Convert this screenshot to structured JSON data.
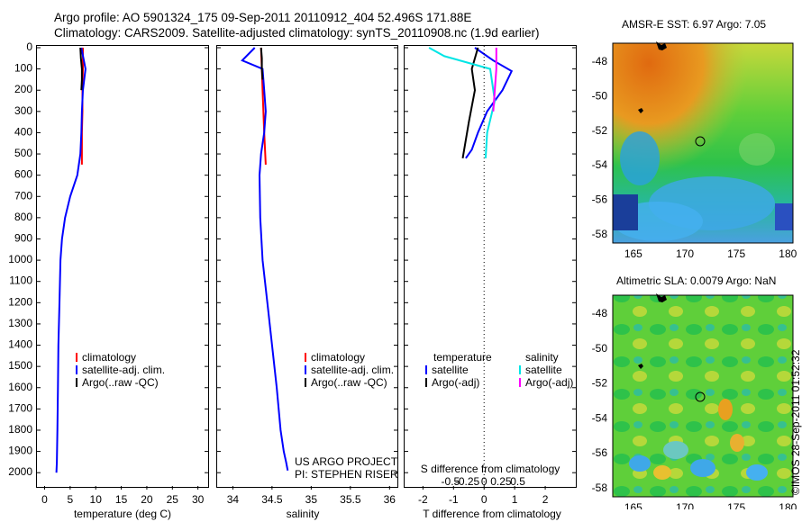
{
  "header": {
    "line1": "Argo profile: AO 5901324_175 09-Sep-2011 20110912_404 52.496S 171.88E",
    "line2": "Climatology: CARS2009. Satellite-adjusted climatology: synTS_20110908.nc (1.9d earlier)"
  },
  "colors": {
    "climatology": "#ff0000",
    "satellite": "#0000ff",
    "argo": "#000000",
    "sal_satellite": "#00e5e5",
    "sal_argo": "#ff00ff"
  },
  "depth_axis": {
    "min": 0,
    "max": 2050,
    "ticks": [
      "0",
      "100",
      "200",
      "300",
      "400",
      "500",
      "600",
      "700",
      "800",
      "900",
      "1000",
      "1100",
      "1200",
      "1300",
      "1400",
      "1500",
      "1600",
      "1700",
      "1800",
      "1900",
      "2000"
    ]
  },
  "chart_data": [
    {
      "type": "line",
      "id": "temperature",
      "xlabel": "temperature (deg C)",
      "xlim": [
        -1.5,
        32
      ],
      "xticks": [
        "0",
        "5",
        "10",
        "15",
        "20",
        "25",
        "30"
      ],
      "series": [
        {
          "name": "climatology",
          "x": [
            7.5,
            7.5,
            7.4,
            7.4,
            7.3,
            7.3
          ],
          "y": [
            0,
            100,
            200,
            300,
            400,
            550
          ]
        },
        {
          "name": "satellite-adj. clim.",
          "x": [
            7.2,
            8.0,
            7.5,
            7.3,
            7.2,
            7.0,
            6.4,
            5.0,
            4.0,
            3.4,
            3.1,
            2.9,
            2.7,
            2.6,
            2.5,
            2.4,
            2.3
          ],
          "y": [
            0,
            100,
            200,
            300,
            400,
            500,
            600,
            700,
            800,
            900,
            1000,
            1200,
            1400,
            1600,
            1800,
            1950,
            2000
          ]
        },
        {
          "name": "Argo(..raw -QC)",
          "x": [
            7.0,
            7.1,
            7.3,
            7.3,
            7.2
          ],
          "y": [
            0,
            50,
            100,
            150,
            200
          ]
        }
      ],
      "legend": [
        "climatology",
        "satellite-adj. clim.",
        "Argo(..raw -QC)"
      ]
    },
    {
      "type": "line",
      "id": "salinity",
      "xlabel": "salinity",
      "xlim": [
        33.8,
        36.1
      ],
      "xticks": [
        "34",
        "34.5",
        "35",
        "35.5",
        "36"
      ],
      "series": [
        {
          "name": "climatology",
          "x": [
            34.36,
            34.37,
            34.38,
            34.39,
            34.4,
            34.42
          ],
          "y": [
            0,
            100,
            200,
            300,
            400,
            550
          ]
        },
        {
          "name": "satellite-adj. clim.",
          "x": [
            34.28,
            34.12,
            34.38,
            34.4,
            34.42,
            34.4,
            34.36,
            34.34,
            34.35,
            34.38,
            34.44,
            34.5,
            34.56,
            34.61,
            34.65,
            34.68,
            34.7
          ],
          "y": [
            0,
            60,
            100,
            200,
            300,
            400,
            500,
            600,
            800,
            1000,
            1200,
            1400,
            1600,
            1800,
            1900,
            1950,
            1990
          ]
        },
        {
          "name": "Argo(..raw -QC)",
          "x": [
            34.36,
            34.37,
            34.37,
            34.38
          ],
          "y": [
            0,
            50,
            100,
            150
          ]
        }
      ],
      "legend": [
        "climatology",
        "satellite-adj. clim.",
        "Argo(..raw -QC)"
      ],
      "annotations": [
        "US ARGO PROJECT",
        "PI: STEPHEN RISER"
      ]
    },
    {
      "type": "line",
      "id": "difference",
      "xlabel_bottom": "T difference from climatology",
      "xlabel_top": "S difference from climatology",
      "xlim": [
        -2.6,
        3.0
      ],
      "xticks_bottom": [
        "-2",
        "-1",
        "0",
        "1",
        "2"
      ],
      "xticks_top": [
        "-0.5",
        "-0.25",
        "0",
        "0.25",
        "0.5"
      ],
      "series": [
        {
          "name": "T satellite",
          "x": [
            -0.3,
            0.3,
            0.9,
            0.6,
            0.1,
            -0.2,
            -0.4,
            -0.6
          ],
          "y": [
            0,
            60,
            110,
            200,
            300,
            400,
            480,
            520
          ]
        },
        {
          "name": "T Argo(-adj)",
          "x": [
            -0.2,
            -0.4,
            -0.3,
            -0.5,
            -0.7
          ],
          "y": [
            0,
            100,
            200,
            350,
            520
          ]
        },
        {
          "name": "S satellite",
          "x": [
            -1.8,
            -1.3,
            0.2,
            0.35,
            0.1,
            0.05
          ],
          "y": [
            0,
            40,
            100,
            250,
            400,
            520
          ]
        },
        {
          "name": "S Argo(-adj)",
          "x": [
            0.4,
            0.4,
            0.35,
            0.3
          ],
          "y": [
            0,
            100,
            200,
            300
          ]
        }
      ],
      "legend_headers": [
        "temperature",
        "salinity"
      ],
      "legend_temperature": [
        "satellite",
        "Argo(-adj)"
      ],
      "legend_salinity": [
        "satellite",
        "Argo(-adj)"
      ]
    }
  ],
  "maps": [
    {
      "title": "AMSR-E SST: 6.97 Argo: 7.05",
      "lat_ticks": [
        "-48",
        "-50",
        "-52",
        "-54",
        "-56",
        "-58"
      ],
      "lon_ticks": [
        "165",
        "170",
        "175",
        "180"
      ]
    },
    {
      "title": "Altimetric SLA: 0.0079 Argo: NaN",
      "lat_ticks": [
        "-48",
        "-50",
        "-52",
        "-54",
        "-56",
        "-58"
      ],
      "lon_ticks": [
        "165",
        "170",
        "175",
        "180"
      ]
    }
  ],
  "footer": {
    "timestamp": "©IMOS 28-Sep-2011 01:52:32"
  }
}
